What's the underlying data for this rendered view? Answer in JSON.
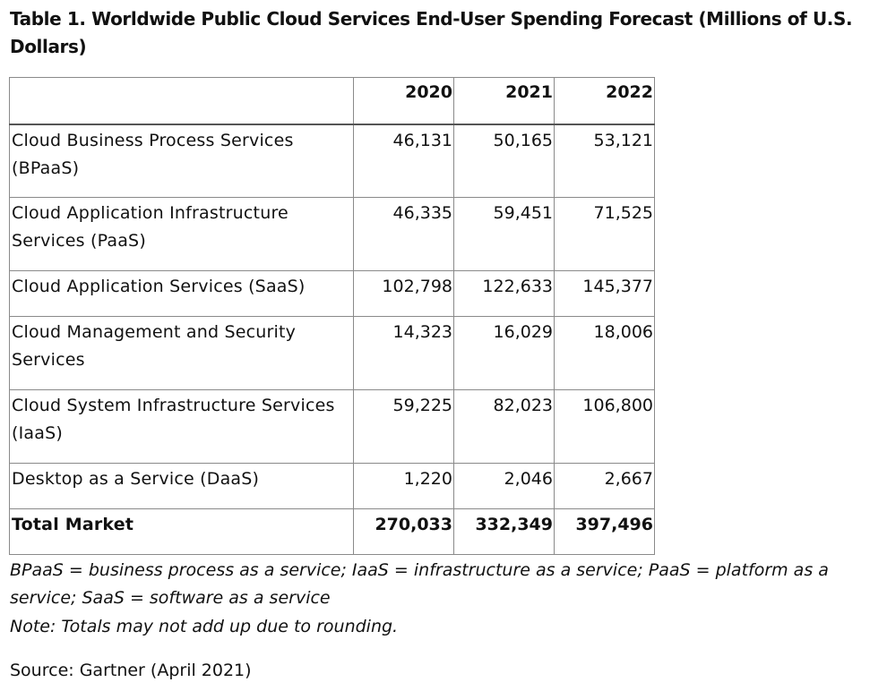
{
  "title": "Table 1. Worldwide Public Cloud Services End-User Spending Forecast (Millions of U.S. Dollars)",
  "table": {
    "headers": [
      "",
      "2020",
      "2021",
      "2022"
    ],
    "rows": [
      {
        "label": "Cloud Business Process Services (BPaaS)",
        "v2020": "46,131",
        "v2021": "50,165",
        "v2022": "53,121"
      },
      {
        "label": "Cloud Application Infrastructure Services (PaaS)",
        "v2020": "46,335",
        "v2021": "59,451",
        "v2022": "71,525"
      },
      {
        "label": "Cloud Application Services (SaaS)",
        "v2020": "102,798",
        "v2021": "122,633",
        "v2022": "145,377"
      },
      {
        "label": "Cloud Management and Security Services",
        "v2020": "14,323",
        "v2021": "16,029",
        "v2022": "18,006"
      },
      {
        "label": "Cloud System Infrastructure Services (IaaS)",
        "v2020": "59,225",
        "v2021": "82,023",
        "v2022": "106,800"
      },
      {
        "label": "Desktop as a Service (DaaS)",
        "v2020": "1,220",
        "v2021": "2,046",
        "v2022": "2,667"
      },
      {
        "label": "Total Market",
        "v2020": "270,033",
        "v2021": "332,349",
        "v2022": "397,496"
      }
    ]
  },
  "footnote": "BPaaS = business process as a service; IaaS = infrastructure as a service; PaaS = platform as a service; SaaS = software as a service",
  "note": "Note: Totals may not add up due to rounding.",
  "source": "Source: Gartner (April 2021)"
}
